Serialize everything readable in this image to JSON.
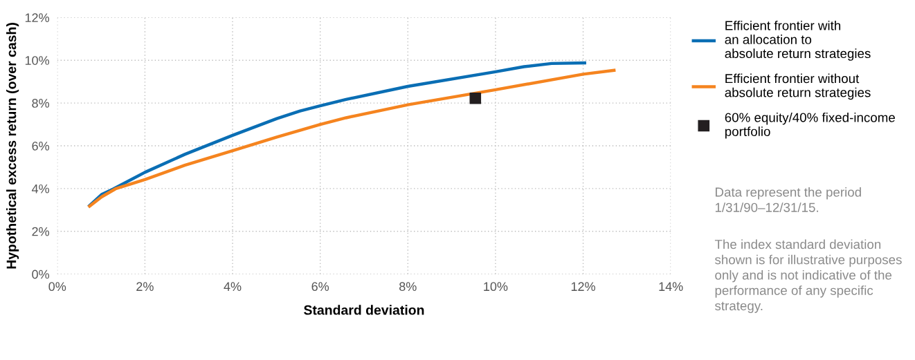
{
  "chart_data": {
    "type": "line",
    "xlabel": "Standard deviation",
    "ylabel": "Hypothetical excess return (over cash)",
    "xlim": [
      0,
      14
    ],
    "ylim": [
      0,
      12
    ],
    "xticks": [
      {
        "value": 0,
        "label": "0%"
      },
      {
        "value": 2,
        "label": "2%"
      },
      {
        "value": 4,
        "label": "4%"
      },
      {
        "value": 6,
        "label": "6%"
      },
      {
        "value": 8,
        "label": "8%"
      },
      {
        "value": 10,
        "label": "10%"
      },
      {
        "value": 12,
        "label": "12%"
      },
      {
        "value": 14,
        "label": "14%"
      }
    ],
    "yticks": [
      {
        "value": 0,
        "label": "0%"
      },
      {
        "value": 2,
        "label": "2%"
      },
      {
        "value": 4,
        "label": "4%"
      },
      {
        "value": 6,
        "label": "6%"
      },
      {
        "value": 8,
        "label": "8%"
      },
      {
        "value": 10,
        "label": "10%"
      },
      {
        "value": 12,
        "label": "12%"
      }
    ],
    "grid": true,
    "legend": "right",
    "line_style": "solid",
    "series": [
      {
        "name": "Efficient frontier with\nan allocation to\nabsolute return strategies",
        "color": "#0a6eb4",
        "x": [
          0.71,
          1.01,
          1.27,
          2.0,
          2.91,
          4.0,
          5.01,
          5.54,
          6.0,
          6.59,
          8.0,
          10.0,
          10.65,
          11.28,
          12.07
        ],
        "values": [
          3.15,
          3.72,
          3.97,
          4.76,
          5.6,
          6.49,
          7.27,
          7.63,
          7.87,
          8.17,
          8.78,
          9.46,
          9.7,
          9.85,
          9.88
        ]
      },
      {
        "name": "Efficient frontier without\nabsolute return strategies",
        "color": "#f5841f",
        "x": [
          0.71,
          1.01,
          1.33,
          2.0,
          2.91,
          4.0,
          5.01,
          6.0,
          6.59,
          8.0,
          10.0,
          12.0,
          12.74
        ],
        "values": [
          3.13,
          3.61,
          3.99,
          4.42,
          5.09,
          5.77,
          6.41,
          7.0,
          7.31,
          7.92,
          8.62,
          9.35,
          9.54
        ]
      },
      {
        "name": "60% equity/40% fixed-income\nportfolio",
        "color": "#231f20",
        "type": "scatter",
        "marker": "square",
        "x": [
          9.54
        ],
        "values": [
          8.22
        ]
      }
    ],
    "annotations": [
      "Data represent the period\n1/31/90–12/31/15.",
      "The index standard deviation\nshown is for illustrative purposes\nonly and is not indicative of the\nperformance of any specific\nstrategy."
    ]
  }
}
